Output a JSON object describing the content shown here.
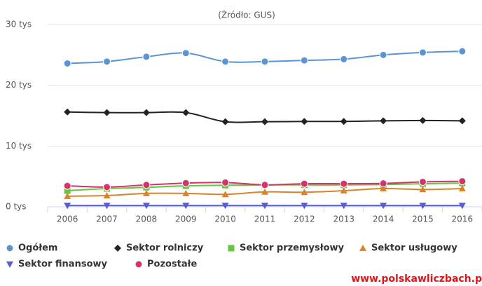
{
  "chart_data": {
    "type": "line",
    "subtitle": "(Źródło: GUS)",
    "watermark": "www.polskawliczbach.p",
    "categories": [
      "2006",
      "2007",
      "2008",
      "2009",
      "2010",
      "2011",
      "2012",
      "2013",
      "2014",
      "2015",
      "2016"
    ],
    "series": [
      {
        "name": "Ogółem",
        "color": "#5b93d3",
        "marker": "circle",
        "values": [
          23.6,
          23.9,
          24.7,
          25.3,
          23.9,
          23.9,
          24.1,
          24.3,
          25.0,
          25.4,
          25.6
        ]
      },
      {
        "name": "Sektor rolniczy",
        "color": "#222222",
        "marker": "diamond",
        "values": [
          15.6,
          15.5,
          15.5,
          15.5,
          14.0,
          14.0,
          14.05,
          14.05,
          14.15,
          14.2,
          14.15
        ]
      },
      {
        "name": "Sektor przemysłowy",
        "color": "#66c63f",
        "marker": "square",
        "values": [
          2.65,
          3.0,
          3.2,
          3.45,
          3.55,
          3.6,
          3.6,
          3.6,
          3.65,
          3.8,
          3.9
        ]
      },
      {
        "name": "Sektor usługowy",
        "color": "#d9832b",
        "marker": "triangle",
        "values": [
          1.75,
          1.85,
          2.2,
          2.2,
          2.05,
          2.45,
          2.4,
          2.65,
          3.0,
          2.85,
          3.0
        ]
      },
      {
        "name": "Sektor finansowy",
        "color": "#5a5ad8",
        "marker": "triangle-down",
        "values": [
          0.2,
          0.2,
          0.2,
          0.2,
          0.2,
          0.2,
          0.2,
          0.2,
          0.2,
          0.2,
          0.2
        ]
      },
      {
        "name": "Pozostałe",
        "color": "#d6336b",
        "marker": "circle",
        "values": [
          3.45,
          3.25,
          3.6,
          3.9,
          4.0,
          3.6,
          3.8,
          3.8,
          3.85,
          4.1,
          4.2
        ]
      }
    ],
    "ylim": [
      0,
      30
    ],
    "yticks": [
      {
        "value": 0,
        "label": "0 tys"
      },
      {
        "value": 10,
        "label": "10 tys"
      },
      {
        "value": 20,
        "label": "20 tys"
      },
      {
        "value": 30,
        "label": "30 tys"
      }
    ],
    "grid": true
  }
}
